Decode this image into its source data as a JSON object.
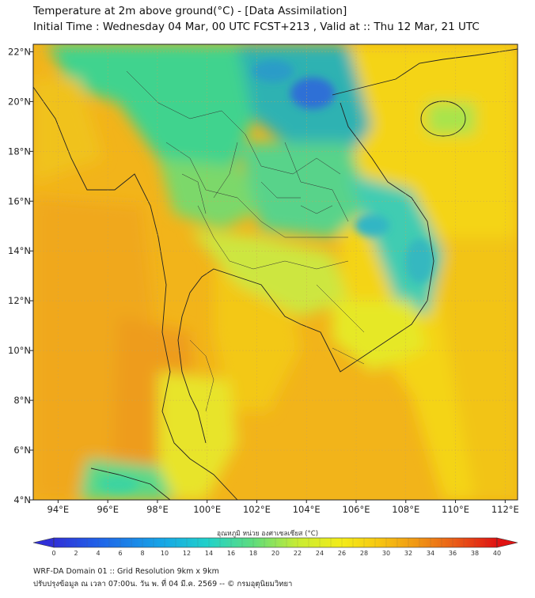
{
  "header": {
    "title_line1": "Temperature at 2m above ground(°C) - [Data Assimilation]",
    "title_line2": "Initial Time : Wednesday 04 Mar, 00 UTC FCST+213 , Valid at :: Thu 12 Mar, 21 UTC"
  },
  "map": {
    "lat_labels": [
      "22°N",
      "20°N",
      "18°N",
      "16°N",
      "14°N",
      "12°N",
      "10°N",
      "8°N",
      "6°N",
      "4°N"
    ],
    "lon_labels": [
      "94°E",
      "96°E",
      "98°E",
      "100°E",
      "102°E",
      "104°E",
      "106°E",
      "108°E",
      "110°E",
      "112°E"
    ]
  },
  "colorbar": {
    "title": "อุณหภูมิ หน่วย องศาเซลเซียส (°C)",
    "ticks": [
      "0",
      "2",
      "4",
      "6",
      "8",
      "10",
      "12",
      "14",
      "16",
      "18",
      "20",
      "22",
      "24",
      "26",
      "28",
      "30",
      "32",
      "34",
      "36",
      "38",
      "40"
    ],
    "colors": [
      "#2b2bd9",
      "#1f5ce6",
      "#1a8be8",
      "#19b6e3",
      "#22cfcf",
      "#3ad6a6",
      "#6ade72",
      "#a6e84a",
      "#dcef2a",
      "#f5ef18",
      "#f7d912",
      "#f6bd12",
      "#f2a016",
      "#ee8018",
      "#ea5c18",
      "#e53016",
      "#e01010"
    ]
  },
  "footer": {
    "line1": "WRF-DA Domain 01 :: Grid Resolution 9km x 9km",
    "line2": "ปรับปรุงข้อมูล ณ เวลา 07:00น. วัน พ. ที่ 04 มี.ค. 2569 -- © กรมอุตุนิยมวิทยา"
  }
}
